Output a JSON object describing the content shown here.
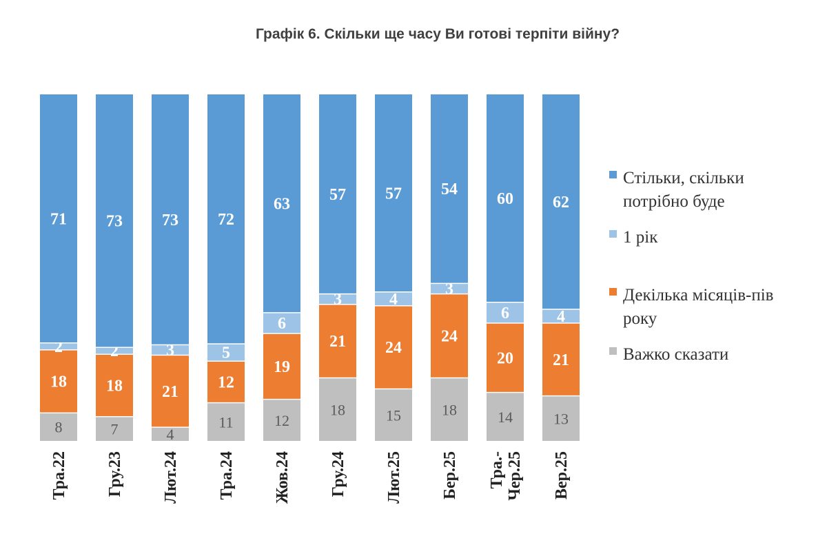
{
  "chart_data": {
    "type": "bar",
    "stacked": true,
    "normalized_percent": true,
    "title": "Графік 6. Скільки ще часу Ви готові терпіти війну?",
    "categories": [
      [
        "Тра.22"
      ],
      [
        "Гру.23"
      ],
      [
        "Лют.24"
      ],
      [
        "Тра.24"
      ],
      [
        "Жов.24"
      ],
      [
        "Гру.24"
      ],
      [
        "Лют.25"
      ],
      [
        "Бер.25"
      ],
      [
        "Тра.-",
        "Чер.25"
      ],
      [
        "Вер.25"
      ]
    ],
    "series": [
      {
        "name": "Важко сказати",
        "color": "#bfbfbf",
        "label_style": "gray",
        "values": [
          8,
          7,
          4,
          11,
          12,
          18,
          15,
          18,
          14,
          13
        ]
      },
      {
        "name": "Декілька місяців-пів року",
        "color": "#ed7d31",
        "label_style": "white",
        "values": [
          18,
          18,
          21,
          12,
          19,
          21,
          24,
          24,
          20,
          21
        ]
      },
      {
        "name": "1 рік",
        "color": "#9dc3e6",
        "label_style": "white",
        "values": [
          2,
          2,
          3,
          5,
          6,
          3,
          4,
          3,
          6,
          4
        ]
      },
      {
        "name": "Стільки, скільки потрібно буде",
        "color": "#5b9bd5",
        "label_style": "white",
        "values": [
          71,
          73,
          73,
          72,
          63,
          57,
          57,
          54,
          60,
          62
        ]
      }
    ],
    "legend": {
      "position": "right",
      "order": [
        3,
        2,
        1,
        0
      ],
      "lines": [
        [
          "Стільки, скільки",
          "потрібно буде"
        ],
        [
          "1 рік"
        ],
        [
          "Декілька місяців-пів",
          "року"
        ],
        [
          "Важко сказати"
        ]
      ]
    },
    "grid": false
  }
}
